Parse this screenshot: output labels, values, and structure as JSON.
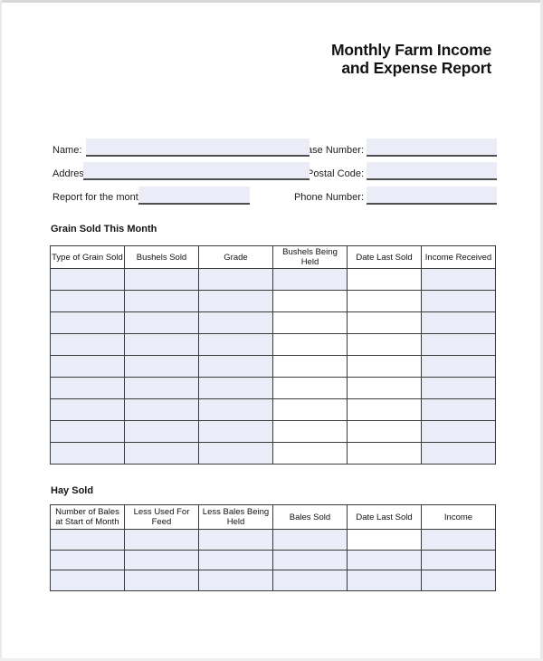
{
  "colors": {
    "field_fill": "#eaecf8",
    "table_border": "#3a3a3a",
    "underline": "#4f4f4f",
    "page_edge": "#d8d8d8"
  },
  "header": {
    "title_line1": "Monthly Farm Income",
    "title_line2": "and Expense Report"
  },
  "form": {
    "name": {
      "label": "Name:",
      "value": ""
    },
    "address": {
      "label": "Address:",
      "value": ""
    },
    "report_month": {
      "label": "Report for the month of",
      "value": ""
    },
    "case_number": {
      "label": "Case Number:",
      "value": ""
    },
    "postal_code": {
      "label": "Postal Code:",
      "value": ""
    },
    "phone_number": {
      "label": "Phone Number:",
      "value": ""
    }
  },
  "grain_section": {
    "title": "Grain Sold This Month",
    "table": {
      "headers": [
        "Type of Grain Sold",
        "Bushels Sold",
        "Grade",
        "Bushels Being Held",
        "Date Last Sold",
        "Income Received"
      ],
      "rows": [
        {
          "fills": [
            "field",
            "field",
            "field",
            "field",
            "plain",
            "field"
          ],
          "values": [
            "",
            "",
            "",
            "",
            "",
            ""
          ]
        },
        {
          "fills": [
            "field",
            "field",
            "field",
            "plain",
            "plain",
            "field"
          ],
          "values": [
            "",
            "",
            "",
            "",
            "",
            ""
          ]
        },
        {
          "fills": [
            "field",
            "field",
            "field",
            "plain",
            "plain",
            "field"
          ],
          "values": [
            "",
            "",
            "",
            "",
            "",
            ""
          ]
        },
        {
          "fills": [
            "field",
            "field",
            "field",
            "plain",
            "plain",
            "field"
          ],
          "values": [
            "",
            "",
            "",
            "",
            "",
            ""
          ]
        },
        {
          "fills": [
            "field",
            "field",
            "field",
            "plain",
            "plain",
            "field"
          ],
          "values": [
            "",
            "",
            "",
            "",
            "",
            ""
          ]
        },
        {
          "fills": [
            "field",
            "field",
            "field",
            "plain",
            "plain",
            "field"
          ],
          "values": [
            "",
            "",
            "",
            "",
            "",
            ""
          ]
        },
        {
          "fills": [
            "field",
            "field",
            "field",
            "plain",
            "plain",
            "field"
          ],
          "values": [
            "",
            "",
            "",
            "",
            "",
            ""
          ]
        },
        {
          "fills": [
            "field",
            "field",
            "field",
            "plain",
            "plain",
            "field"
          ],
          "values": [
            "",
            "",
            "",
            "",
            "",
            ""
          ]
        },
        {
          "fills": [
            "field",
            "field",
            "field",
            "plain",
            "plain",
            "field"
          ],
          "values": [
            "",
            "",
            "",
            "",
            "",
            ""
          ]
        }
      ]
    }
  },
  "hay_section": {
    "title": "Hay Sold",
    "table": {
      "headers": [
        "Number of Bales at Start of Month",
        "Less Used For Feed",
        "Less Bales Being Held",
        "Bales Sold",
        "Date Last Sold",
        "Income"
      ],
      "rows": [
        {
          "fills": [
            "field",
            "field",
            "field",
            "field",
            "plain",
            "field"
          ],
          "values": [
            "",
            "",
            "",
            "",
            "",
            ""
          ]
        },
        {
          "fills": [
            "field",
            "field",
            "field",
            "field",
            "field",
            "field"
          ],
          "values": [
            "",
            "",
            "",
            "",
            "",
            ""
          ]
        },
        {
          "fills": [
            "field",
            "field",
            "field",
            "field",
            "field",
            "field"
          ],
          "values": [
            "",
            "",
            "",
            "",
            "",
            ""
          ]
        }
      ]
    }
  }
}
